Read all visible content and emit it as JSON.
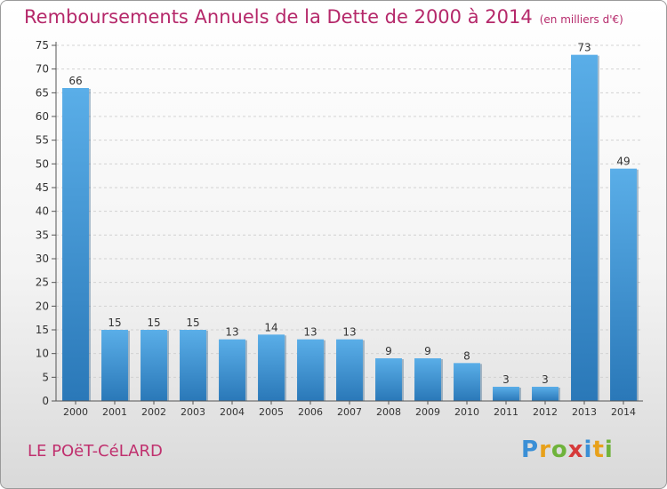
{
  "header": {
    "title": "Remboursements Annuels de la Dette de 2000 à 2014",
    "unit": "(en milliers d'€)"
  },
  "footer": {
    "commune": "LE POëT-CéLARD",
    "logo": [
      "P",
      "r",
      "o",
      "x",
      "i",
      "t",
      "i"
    ]
  },
  "colors": {
    "title": "#b5286a",
    "bar_top": "#5aaee8",
    "bar_bottom": "#2a78b8"
  },
  "chart_data": {
    "type": "bar",
    "title": "Remboursements Annuels de la Dette de 2000 à 2014",
    "xlabel": "",
    "ylabel": "",
    "categories": [
      "2000",
      "2001",
      "2002",
      "2003",
      "2004",
      "2005",
      "2006",
      "2007",
      "2008",
      "2009",
      "2010",
      "2011",
      "2012",
      "2013",
      "2014"
    ],
    "values": [
      66,
      15,
      15,
      15,
      13,
      14,
      13,
      13,
      9,
      9,
      8,
      3,
      3,
      73,
      49
    ],
    "ylim": [
      0,
      75
    ],
    "yticks": [
      0,
      5,
      10,
      15,
      20,
      25,
      30,
      35,
      40,
      45,
      50,
      55,
      60,
      65,
      70,
      75
    ],
    "grid": true,
    "legend": "none"
  }
}
